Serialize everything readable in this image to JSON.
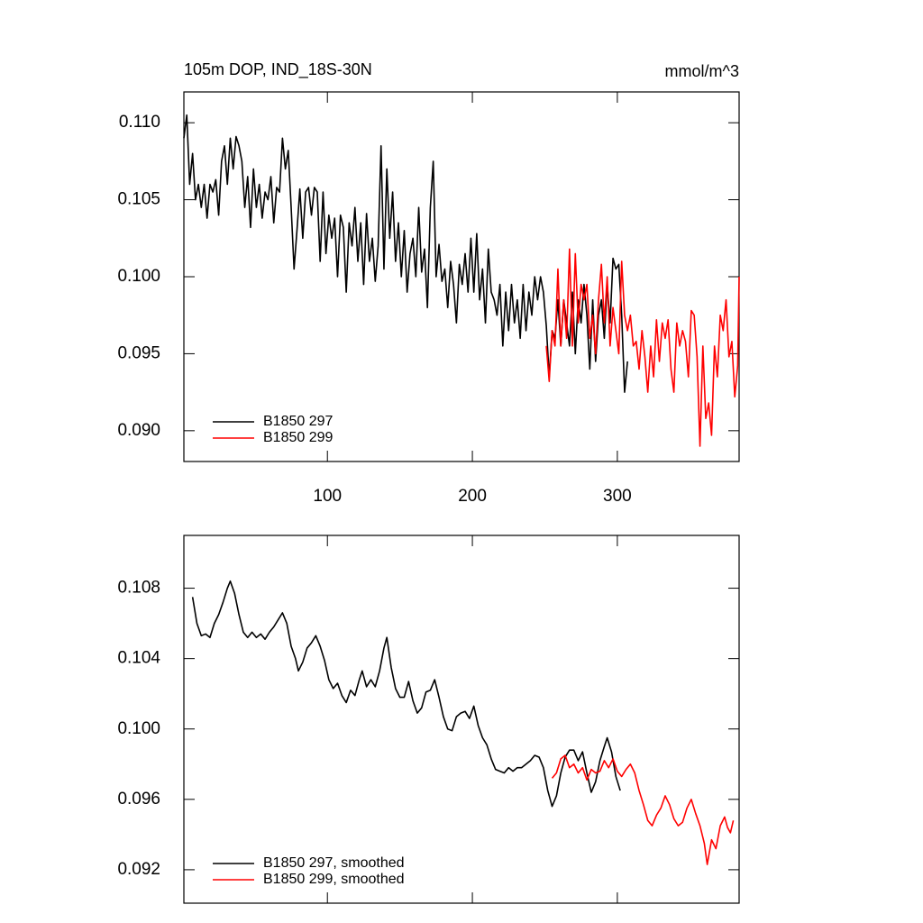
{
  "chart_data": [
    {
      "type": "line",
      "title": "105m DOP, IND_18S-30N",
      "units": "mmol/m^3",
      "xlim": [
        1,
        384
      ],
      "xticks": [
        100,
        200,
        300
      ],
      "ylim": [
        0.088,
        0.112
      ],
      "yticks": [
        {
          "value": 0.09,
          "label": "0.090"
        },
        0.095,
        {
          "value": 0.1,
          "label": "0.100"
        },
        0.105,
        {
          "value": 0.11,
          "label": "0.110"
        }
      ],
      "legend": "lower left",
      "series": [
        {
          "name": "B1850 297",
          "color": "#000000",
          "x": [
            1,
            3,
            5,
            7,
            9,
            11,
            13,
            15,
            17,
            19,
            21,
            23,
            25,
            27,
            29,
            31,
            33,
            35,
            37,
            39,
            41,
            43,
            45,
            47,
            49,
            51,
            53,
            55,
            57,
            59,
            61,
            63,
            65,
            67,
            69,
            71,
            73,
            75,
            77,
            79,
            81,
            83,
            85,
            87,
            89,
            91,
            93,
            95,
            97,
            99,
            101,
            103,
            105,
            107,
            109,
            111,
            113,
            115,
            117,
            119,
            121,
            123,
            125,
            127,
            129,
            131,
            133,
            135,
            137,
            139,
            141,
            143,
            145,
            147,
            149,
            151,
            153,
            155,
            157,
            159,
            161,
            163,
            165,
            167,
            169,
            171,
            173,
            175,
            177,
            179,
            181,
            183,
            185,
            187,
            189,
            191,
            193,
            195,
            197,
            199,
            201,
            203,
            205,
            207,
            209,
            211,
            213,
            215,
            217,
            219,
            221,
            223,
            225,
            227,
            229,
            231,
            233,
            235,
            237,
            239,
            241,
            243,
            245,
            247,
            249,
            251,
            253,
            255,
            257,
            259,
            261,
            263,
            265,
            267,
            269,
            271,
            273,
            275,
            277,
            279,
            281,
            283,
            285,
            287,
            289,
            291,
            293,
            295,
            297,
            299,
            301,
            303,
            305,
            307
          ],
          "values": [
            0.109,
            0.1105,
            0.106,
            0.108,
            0.105,
            0.106,
            0.1045,
            0.106,
            0.1038,
            0.106,
            0.1055,
            0.1063,
            0.104,
            0.1075,
            0.1085,
            0.106,
            0.109,
            0.107,
            0.1091,
            0.1085,
            0.1075,
            0.1045,
            0.1065,
            0.1032,
            0.107,
            0.1045,
            0.106,
            0.1038,
            0.1055,
            0.105,
            0.1065,
            0.1035,
            0.1058,
            0.1055,
            0.109,
            0.107,
            0.1082,
            0.1045,
            0.1005,
            0.103,
            0.1057,
            0.1025,
            0.1055,
            0.1058,
            0.104,
            0.1058,
            0.1055,
            0.101,
            0.1055,
            0.1015,
            0.104,
            0.1025,
            0.1038,
            0.1,
            0.104,
            0.1032,
            0.099,
            0.1035,
            0.102,
            0.1045,
            0.101,
            0.1035,
            0.0995,
            0.1041,
            0.101,
            0.1025,
            0.0997,
            0.102,
            0.1085,
            0.1005,
            0.107,
            0.1025,
            0.1055,
            0.101,
            0.1035,
            0.1,
            0.103,
            0.099,
            0.1015,
            0.1025,
            0.1,
            0.1045,
            0.1003,
            0.1018,
            0.098,
            0.1045,
            0.1075,
            0.1,
            0.1021,
            0.0997,
            0.1005,
            0.098,
            0.101,
            0.0995,
            0.097,
            0.1008,
            0.0995,
            0.1015,
            0.099,
            0.1025,
            0.099,
            0.1028,
            0.0985,
            0.1005,
            0.097,
            0.1018,
            0.099,
            0.0985,
            0.0975,
            0.0995,
            0.0955,
            0.099,
            0.0965,
            0.0995,
            0.097,
            0.0985,
            0.096,
            0.0995,
            0.0965,
            0.099,
            0.0975,
            0.1,
            0.0985,
            0.1,
            0.099,
            0.0968,
            0.0935,
            0.0965,
            0.096,
            0.0985,
            0.0955,
            0.0985,
            0.097,
            0.0955,
            0.099,
            0.095,
            0.0985,
            0.097,
            0.0995,
            0.0975,
            0.094,
            0.0985,
            0.0945,
            0.0975,
            0.0985,
            0.096,
            0.0995,
            0.097,
            0.1012,
            0.1005,
            0.1008,
            0.0975,
            0.0925,
            0.0945
          ]
        },
        {
          "name": "B1850 299",
          "color": "#ff0000",
          "x": [
            251,
            253,
            255,
            257,
            259,
            261,
            263,
            265,
            267,
            269,
            271,
            273,
            275,
            277,
            279,
            281,
            283,
            285,
            287,
            289,
            291,
            293,
            295,
            297,
            299,
            301,
            303,
            305,
            307,
            309,
            311,
            313,
            315,
            317,
            319,
            321,
            323,
            325,
            327,
            329,
            331,
            333,
            335,
            337,
            339,
            341,
            343,
            345,
            347,
            349,
            351,
            353,
            355,
            357,
            359,
            361,
            363,
            365,
            367,
            369,
            371,
            373,
            375,
            377,
            379,
            381,
            383,
            384
          ],
          "values": [
            0.0955,
            0.0932,
            0.0965,
            0.0955,
            0.1005,
            0.0955,
            0.0985,
            0.096,
            0.1018,
            0.0955,
            0.1015,
            0.097,
            0.0995,
            0.0985,
            0.0995,
            0.096,
            0.0975,
            0.095,
            0.0985,
            0.1008,
            0.097,
            0.1,
            0.0955,
            0.098,
            0.0965,
            0.095,
            0.101,
            0.0975,
            0.0965,
            0.0975,
            0.0955,
            0.0958,
            0.094,
            0.0965,
            0.0948,
            0.0925,
            0.0955,
            0.0935,
            0.0972,
            0.0945,
            0.097,
            0.096,
            0.0972,
            0.094,
            0.0925,
            0.097,
            0.0955,
            0.0965,
            0.0958,
            0.0935,
            0.0978,
            0.0975,
            0.0948,
            0.089,
            0.0955,
            0.0908,
            0.0918,
            0.0897,
            0.0955,
            0.0935,
            0.0975,
            0.0965,
            0.0985,
            0.0948,
            0.0958,
            0.0922,
            0.0942,
            0.1
          ]
        }
      ]
    },
    {
      "type": "line",
      "xlim": [
        1,
        384
      ],
      "ylim": [
        0.0901,
        0.111
      ],
      "yticks": [
        0.092,
        0.096,
        {
          "value": 0.1,
          "label": "0.100"
        },
        0.104,
        0.108
      ],
      "legend": "lower left",
      "series": [
        {
          "name": "B1850 297, smoothed",
          "color": "#000000",
          "x": [
            7,
            10,
            13,
            16,
            19,
            22,
            25,
            28,
            31,
            33,
            36,
            39,
            42,
            45,
            48,
            51,
            54,
            57,
            60,
            63,
            66,
            69,
            72,
            75,
            78,
            80,
            83,
            86,
            89,
            92,
            95,
            98,
            101,
            104,
            107,
            110,
            113,
            116,
            119,
            122,
            124,
            127,
            130,
            133,
            136,
            139,
            141,
            144,
            147,
            150,
            153,
            156,
            159,
            162,
            165,
            168,
            171,
            174,
            177,
            180,
            183,
            186,
            189,
            192,
            195,
            198,
            201,
            204,
            207,
            210,
            213,
            216,
            219,
            222,
            225,
            228,
            231,
            234,
            237,
            240,
            243,
            246,
            249,
            252,
            255,
            258,
            261,
            264,
            267,
            270,
            273,
            276,
            279,
            282,
            285,
            288,
            291,
            293,
            296,
            299,
            302
          ],
          "values": [
            0.1075,
            0.106,
            0.1053,
            0.1054,
            0.1052,
            0.106,
            0.1065,
            0.1072,
            0.108,
            0.1084,
            0.1077,
            0.1065,
            0.1055,
            0.1052,
            0.1055,
            0.1052,
            0.1054,
            0.1051,
            0.1055,
            0.1058,
            0.1062,
            0.1066,
            0.106,
            0.1047,
            0.104,
            0.1033,
            0.1038,
            0.1046,
            0.1049,
            0.1053,
            0.1047,
            0.1039,
            0.1028,
            0.1023,
            0.1026,
            0.1019,
            0.1015,
            0.1022,
            0.1019,
            0.1028,
            0.1033,
            0.1024,
            0.1028,
            0.1024,
            0.1033,
            0.1046,
            0.1052,
            0.1035,
            0.1023,
            0.1018,
            0.1018,
            0.1027,
            0.1016,
            0.1009,
            0.1012,
            0.1021,
            0.1022,
            0.1028,
            0.1018,
            0.1007,
            0.1,
            0.0999,
            0.1007,
            0.1009,
            0.101,
            0.1006,
            0.1013,
            0.1002,
            0.0995,
            0.0991,
            0.0983,
            0.0977,
            0.0976,
            0.0975,
            0.0978,
            0.0976,
            0.0978,
            0.0978,
            0.098,
            0.0982,
            0.0985,
            0.0984,
            0.0978,
            0.0965,
            0.0956,
            0.0962,
            0.0975,
            0.0984,
            0.0988,
            0.0988,
            0.0982,
            0.0987,
            0.0975,
            0.0964,
            0.097,
            0.0982,
            0.099,
            0.0995,
            0.0987,
            0.0973,
            0.0965
          ]
        },
        {
          "name": "B1850 299, smoothed",
          "color": "#ff0000",
          "x": [
            255,
            258,
            261,
            264,
            267,
            270,
            273,
            276,
            279,
            282,
            285,
            288,
            291,
            294,
            297,
            300,
            303,
            306,
            309,
            312,
            315,
            318,
            321,
            324,
            327,
            330,
            333,
            336,
            339,
            342,
            345,
            348,
            351,
            354,
            357,
            360,
            362,
            365,
            368,
            371,
            374,
            376,
            378,
            380
          ],
          "values": [
            0.0972,
            0.0975,
            0.0983,
            0.0985,
            0.0978,
            0.098,
            0.0975,
            0.0978,
            0.0971,
            0.0977,
            0.0975,
            0.0976,
            0.0982,
            0.0978,
            0.0983,
            0.0976,
            0.0973,
            0.0977,
            0.098,
            0.0975,
            0.0965,
            0.0957,
            0.0948,
            0.0945,
            0.0951,
            0.0955,
            0.0962,
            0.0957,
            0.0949,
            0.0945,
            0.0947,
            0.0955,
            0.096,
            0.0952,
            0.0945,
            0.0935,
            0.0923,
            0.0937,
            0.0932,
            0.0945,
            0.095,
            0.0944,
            0.0941,
            0.0948
          ]
        }
      ]
    }
  ]
}
